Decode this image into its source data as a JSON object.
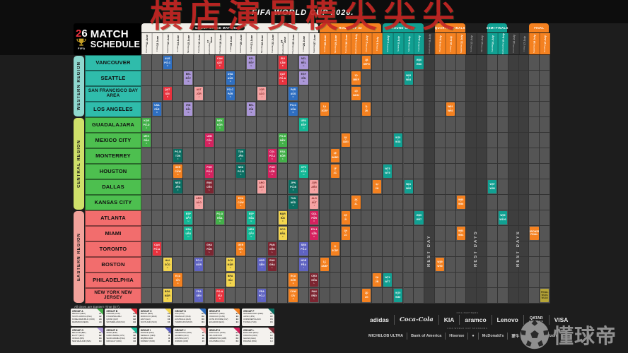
{
  "watermark": "横店演员模尖尖尖",
  "header": {
    "title": "FIFA WORLD CUP 2026."
  },
  "logo": {
    "year_digit1": "2",
    "year_digit2": "6",
    "fifa": "FIFA",
    "line1": "MATCH",
    "line2": "SCHEDULE"
  },
  "footnote": "All times are Eastern Time (ET).",
  "brand": {
    "name": "懂球帝"
  },
  "stages": [
    {
      "label": "GROUP STAGE MATCHES",
      "type": "group",
      "c0": 0,
      "c1": 16
    },
    {
      "label": "ROUND OF 32",
      "type": "orange",
      "c0": 17,
      "c1": 22
    },
    {
      "label": "ROUND OF 16",
      "type": "teal",
      "c0": 23,
      "c1": 26
    },
    {
      "label": "QUARTER-FINALS",
      "type": "orange",
      "c0": 28,
      "c1": 30
    },
    {
      "label": "SEMI-FINALS",
      "type": "teal",
      "c0": 33,
      "c1": 34
    },
    {
      "label": "FINAL",
      "type": "orange",
      "c0": 37,
      "c1": 38
    }
  ],
  "columns": [
    {
      "day": "Thursday",
      "date": "11 June",
      "type": "group"
    },
    {
      "day": "Friday",
      "date": "12 June",
      "type": "group"
    },
    {
      "day": "Saturday",
      "date": "13 June",
      "type": "group"
    },
    {
      "day": "Sunday",
      "date": "14 June",
      "type": "group"
    },
    {
      "day": "Monday",
      "date": "15 June",
      "type": "group"
    },
    {
      "day": "Tuesday",
      "date": "16 June",
      "type": "group"
    },
    {
      "day": "Wednesday",
      "date": "17 June",
      "type": "group"
    },
    {
      "day": "Thursday",
      "date": "18 June",
      "type": "group"
    },
    {
      "day": "Friday",
      "date": "19 June",
      "type": "group"
    },
    {
      "day": "Saturday",
      "date": "20 June",
      "type": "group"
    },
    {
      "day": "Sunday",
      "date": "21 June",
      "type": "group"
    },
    {
      "day": "Monday",
      "date": "22 June",
      "type": "group"
    },
    {
      "day": "Tuesday",
      "date": "23 June",
      "type": "group"
    },
    {
      "day": "Wednesday",
      "date": "24 June",
      "type": "group"
    },
    {
      "day": "Thursday",
      "date": "25 June",
      "type": "group"
    },
    {
      "day": "Friday",
      "date": "26 June",
      "type": "group"
    },
    {
      "day": "Saturday",
      "date": "27 June",
      "type": "group"
    },
    {
      "day": "Sunday",
      "date": "28 June",
      "type": "r32"
    },
    {
      "day": "Monday",
      "date": "29 June",
      "type": "r32"
    },
    {
      "day": "Tuesday",
      "date": "30 June",
      "type": "r32"
    },
    {
      "day": "Wednesday",
      "date": "1 July",
      "type": "r32"
    },
    {
      "day": "Thursday",
      "date": "2 July",
      "type": "r32"
    },
    {
      "day": "Friday",
      "date": "3 July",
      "type": "r32"
    },
    {
      "day": "Saturday",
      "date": "4 July",
      "type": "r16"
    },
    {
      "day": "Sunday",
      "date": "5 July",
      "type": "r16"
    },
    {
      "day": "Monday",
      "date": "6 July",
      "type": "r16"
    },
    {
      "day": "Tuesday",
      "date": "7 July",
      "type": "r16"
    },
    {
      "day": "Wednesday",
      "date": "8 July",
      "type": "rest"
    },
    {
      "day": "Thursday",
      "date": "9 July",
      "type": "qf"
    },
    {
      "day": "Friday",
      "date": "10 July",
      "type": "qf"
    },
    {
      "day": "Saturday",
      "date": "11 July",
      "type": "qf"
    },
    {
      "day": "Sunday",
      "date": "12 July",
      "type": "rest"
    },
    {
      "day": "Monday",
      "date": "13 July",
      "type": "rest"
    },
    {
      "day": "Tuesday",
      "date": "14 July",
      "type": "sf"
    },
    {
      "day": "Wednesday",
      "date": "15 July",
      "type": "sf"
    },
    {
      "day": "Thursday",
      "date": "16 July",
      "type": "rest"
    },
    {
      "day": "Friday",
      "date": "17 July",
      "type": "rest"
    },
    {
      "day": "Saturday",
      "date": "18 July",
      "type": "final"
    },
    {
      "day": "Sunday",
      "date": "19 July",
      "type": "final"
    }
  ],
  "rest_labels": [
    {
      "col": 27,
      "span": 1,
      "text": "REST DAY"
    },
    {
      "col": 31,
      "span": 2,
      "text": "REST DAYS"
    },
    {
      "col": 35,
      "span": 2,
      "text": "REST DAYS"
    }
  ],
  "regions": [
    {
      "name": "WESTERN REGION",
      "tab_color": "#8fd8cf",
      "city_color": "#2fbcab",
      "cities": [
        "VANCOUVER",
        "SEATTLE",
        "SAN FRANCISCO BAY AREA",
        "LOS ANGELES"
      ]
    },
    {
      "name": "CENTRAL REGION",
      "tab_color": "#cfe06a",
      "city_color": "#4dbf4f",
      "cities": [
        "GUADALAJARA",
        "MEXICO CITY",
        "MONTERREY",
        "HOUSTON",
        "DALLAS",
        "KANSAS CITY"
      ]
    },
    {
      "name": "EASTERN REGION",
      "tab_color": "#f2a29b",
      "city_color": "#f26d6d",
      "cities": [
        "ATLANTA",
        "MIAMI",
        "TORONTO",
        "BOSTON",
        "PHILADELPHIA",
        "NEW YORK NEW JERSEY"
      ]
    }
  ],
  "colors": {
    "A": {
      "bg": "#43b049",
      "fg": "#ffffff"
    },
    "B": {
      "bg": "#e8323e",
      "fg": "#ffffff"
    },
    "C": {
      "bg": "#f3d54e",
      "fg": "#222222"
    },
    "D": {
      "bg": "#2f6fc1",
      "fg": "#ffffff"
    },
    "E": {
      "bg": "#f48120",
      "fg": "#ffffff"
    },
    "F": {
      "bg": "#0b6e62",
      "fg": "#ffffff"
    },
    "G": {
      "bg": "#ab97d8",
      "fg": "#231f20"
    },
    "H": {
      "bg": "#14b896",
      "fg": "#ffffff"
    },
    "I": {
      "bg": "#5f63c2",
      "fg": "#ffffff"
    },
    "J": {
      "bg": "#f5a3a3",
      "fg": "#7a1e1e"
    },
    "K": {
      "bg": "#d5225f",
      "fg": "#ffffff"
    },
    "L": {
      "bg": "#7c2531",
      "fg": "#ffffff"
    },
    "r32": {
      "bg": "#f48120",
      "fg": "#ffffff"
    },
    "r16": {
      "bg": "#11a092",
      "fg": "#ffffff"
    },
    "qf": {
      "bg": "#f48120",
      "fg": "#ffffff"
    },
    "sf": {
      "bg": "#11a092",
      "fg": "#ffffff"
    },
    "bronze": {
      "bg": "#f48120",
      "fg": "#ffffff"
    },
    "final": {
      "bg": "#b5a437",
      "fg": "#332d10"
    }
  },
  "matches": [
    [
      5,
      0,
      "A",
      "MEX",
      "RSA"
    ],
    [
      4,
      0,
      "A",
      "KOR",
      "PO-D"
    ],
    [
      12,
      1,
      "B",
      "CAN",
      "PO-A"
    ],
    [
      3,
      1,
      "D",
      "USA",
      "PAR"
    ],
    [
      0,
      2,
      "D",
      "AUS",
      "PO-C"
    ],
    [
      2,
      2,
      "B",
      "QAT",
      "SUI"
    ],
    [
      13,
      2,
      "C",
      "HAI",
      "SCO"
    ],
    [
      15,
      2,
      "C",
      "BRA",
      "MAR"
    ],
    [
      7,
      3,
      "E",
      "GER",
      "CUW"
    ],
    [
      14,
      3,
      "E",
      "ECU",
      "CIV"
    ],
    [
      8,
      3,
      "F",
      "NED",
      "JPN"
    ],
    [
      6,
      3,
      "F",
      "PO-B",
      "TUN"
    ],
    [
      1,
      4,
      "G",
      "BEL",
      "EGY"
    ],
    [
      3,
      4,
      "G",
      "IRN",
      "NZL"
    ],
    [
      10,
      4,
      "H",
      "ESP",
      "CPV"
    ],
    [
      11,
      4,
      "H",
      "KSA",
      "URU"
    ],
    [
      9,
      5,
      "J",
      "ARG",
      "ALG"
    ],
    [
      2,
      5,
      "J",
      "AUT",
      "JOR"
    ],
    [
      15,
      5,
      "I",
      "FRA",
      "SEN"
    ],
    [
      13,
      5,
      "I",
      "PO-2",
      "NOR"
    ],
    [
      7,
      6,
      "K",
      "POR",
      "PO-1"
    ],
    [
      5,
      6,
      "K",
      "UZB",
      "COL"
    ],
    [
      8,
      6,
      "L",
      "ENG",
      "CRO"
    ],
    [
      12,
      6,
      "L",
      "GHA",
      "PAN"
    ],
    [
      4,
      7,
      "A",
      "MEX",
      "KOR"
    ],
    [
      10,
      7,
      "A",
      "PO-D",
      "RSA"
    ],
    [
      0,
      7,
      "B",
      "CAN",
      "QAT"
    ],
    [
      15,
      7,
      "B",
      "PO-A",
      "SUI"
    ],
    [
      1,
      8,
      "D",
      "USA",
      "AUS"
    ],
    [
      2,
      8,
      "D",
      "PO-C",
      "PAR"
    ],
    [
      14,
      8,
      "C",
      "BRA",
      "HAI"
    ],
    [
      13,
      8,
      "C",
      "SCO",
      "MAR"
    ],
    [
      12,
      9,
      "E",
      "GER",
      "CIV"
    ],
    [
      9,
      9,
      "E",
      "ECU",
      "CUW"
    ],
    [
      7,
      9,
      "F",
      "NED",
      "PO-B"
    ],
    [
      6,
      9,
      "F",
      "TUN",
      "JPN"
    ],
    [
      0,
      10,
      "G",
      "NZL",
      "EGY"
    ],
    [
      3,
      10,
      "G",
      "BEL",
      "IRN"
    ],
    [
      10,
      10,
      "H",
      "ESP",
      "KSA"
    ],
    [
      11,
      10,
      "H",
      "URU",
      "CPV"
    ],
    [
      8,
      11,
      "J",
      "ARG",
      "AUT"
    ],
    [
      2,
      11,
      "J",
      "JOR",
      "ALG"
    ],
    [
      15,
      11,
      "I",
      "FRA",
      "PO-2"
    ],
    [
      13,
      11,
      "I",
      "NOR",
      "SEN"
    ],
    [
      7,
      12,
      "K",
      "POR",
      "UZB"
    ],
    [
      6,
      12,
      "K",
      "COL",
      "PO-1"
    ],
    [
      13,
      12,
      "L",
      "ENG",
      "GHA"
    ],
    [
      12,
      12,
      "L",
      "PAN",
      "CRO"
    ],
    [
      5,
      13,
      "A",
      "PO-D",
      "MEX"
    ],
    [
      6,
      13,
      "A",
      "RSA",
      "KOR"
    ],
    [
      0,
      13,
      "B",
      "SUI",
      "CAN"
    ],
    [
      1,
      13,
      "B",
      "QAT",
      "PO-A"
    ],
    [
      10,
      13,
      "C",
      "MAR",
      "HAI"
    ],
    [
      11,
      13,
      "C",
      "SCO",
      "BRA"
    ],
    [
      3,
      14,
      "D",
      "PO-C",
      "USA"
    ],
    [
      2,
      14,
      "D",
      "PAR",
      "AUS"
    ],
    [
      14,
      14,
      "E",
      "ECU",
      "GER"
    ],
    [
      15,
      14,
      "E",
      "CUW",
      "CIV"
    ],
    [
      9,
      14,
      "F",
      "TUN",
      "NED"
    ],
    [
      8,
      14,
      "F",
      "JPN",
      "PO-B"
    ],
    [
      1,
      15,
      "G",
      "EGY",
      "IRN"
    ],
    [
      0,
      15,
      "G",
      "NZL",
      "BEL"
    ],
    [
      4,
      15,
      "H",
      "URU",
      "ESP"
    ],
    [
      7,
      15,
      "H",
      "CPV",
      "KSA"
    ],
    [
      13,
      15,
      "I",
      "NOR",
      "FRA"
    ],
    [
      12,
      15,
      "I",
      "SEN",
      "PO-2"
    ],
    [
      8,
      16,
      "J",
      "JOR",
      "ARG"
    ],
    [
      9,
      16,
      "J",
      "ALG",
      "AUT"
    ],
    [
      10,
      16,
      "K",
      "COL",
      "POR"
    ],
    [
      11,
      16,
      "K",
      "PO-1",
      "UZB"
    ],
    [
      15,
      16,
      "L",
      "PAN",
      "ENG"
    ],
    [
      14,
      16,
      "L",
      "CRO",
      "GHA"
    ],
    [
      3,
      17,
      "r32",
      "1A",
      "3CEF"
    ],
    [
      13,
      17,
      "r32",
      "1C",
      "3ABF"
    ],
    [
      6,
      18,
      "r32",
      "1E",
      "3ABC"
    ],
    [
      7,
      18,
      "r32",
      "1F",
      "2C"
    ],
    [
      12,
      18,
      "r32",
      "1I",
      "3CDF"
    ],
    [
      5,
      19,
      "r32",
      "1K",
      "3DEI"
    ],
    [
      10,
      19,
      "r32",
      "2E",
      "2I"
    ],
    [
      11,
      19,
      "r32",
      "1H",
      "2J"
    ],
    [
      1,
      20,
      "r32",
      "1D",
      "3BEF"
    ],
    [
      2,
      20,
      "r32",
      "1G",
      "3AHJ"
    ],
    [
      9,
      20,
      "r32",
      "2K",
      "2L"
    ],
    [
      0,
      21,
      "r32",
      "1B",
      "3EFG"
    ],
    [
      3,
      21,
      "r32",
      "1L",
      "2K"
    ],
    [
      15,
      21,
      "r32",
      "2D",
      "2G"
    ],
    [
      8,
      22,
      "r32",
      "1J",
      "2H"
    ],
    [
      14,
      22,
      "r32",
      "2A",
      "2B"
    ],
    [
      14,
      23,
      "r16",
      "W74",
      "W77"
    ],
    [
      7,
      23,
      "r16",
      "W73",
      "W75"
    ],
    [
      5,
      24,
      "r16",
      "W76",
      "W78"
    ],
    [
      15,
      24,
      "r16",
      "W79",
      "W80"
    ],
    [
      1,
      25,
      "r16",
      "W83",
      "W84"
    ],
    [
      8,
      25,
      "r16",
      "W81",
      "W82"
    ],
    [
      0,
      26,
      "r16",
      "W86",
      "W88"
    ],
    [
      10,
      26,
      "r16",
      "W85",
      "W87"
    ],
    [
      13,
      28,
      "qf",
      "W89",
      "W90"
    ],
    [
      3,
      29,
      "qf",
      "W91",
      "W92"
    ],
    [
      11,
      30,
      "qf",
      "W93",
      "W94"
    ],
    [
      9,
      30,
      "qf",
      "W95",
      "W96"
    ],
    [
      8,
      33,
      "sf",
      "W97",
      "W98"
    ],
    [
      10,
      34,
      "sf",
      "W99",
      "W100"
    ],
    [
      11,
      37,
      "bronze",
      "BRONZE",
      "FINAL"
    ],
    [
      15,
      38,
      "final",
      "FINAL",
      "W101 W102"
    ]
  ],
  "legend": [
    {
      "group": "GROUP A",
      "key": "A",
      "teams": [
        [
          "MEXICO (MEX)",
          "A1"
        ],
        [
          "SOUTH AFRICA (RSA)",
          "A2"
        ],
        [
          "KOREA REPUBLIC (KOR)",
          "A3"
        ],
        [
          "DEN/MKD/CZE/IRL",
          "A4"
        ]
      ]
    },
    {
      "group": "GROUP B",
      "key": "B",
      "teams": [
        [
          "CANADA (CAN)",
          "B1"
        ],
        [
          "ITA/NIR/WAL/BIH",
          "B2"
        ],
        [
          "QATAR (QAT)",
          "B3"
        ],
        [
          "SWITZERLAND (SUI)",
          "B4"
        ]
      ]
    },
    {
      "group": "GROUP C",
      "key": "C",
      "teams": [
        [
          "BRAZIL (BRA)",
          "C1"
        ],
        [
          "MOROCCO (MAR)",
          "C2"
        ],
        [
          "HAITI (HAI)",
          "C3"
        ],
        [
          "SCOTLAND (SCO)",
          "C4"
        ]
      ]
    },
    {
      "group": "GROUP D",
      "key": "D",
      "teams": [
        [
          "USA (USA)",
          "D1"
        ],
        [
          "PARAGUAY (PAR)",
          "D2"
        ],
        [
          "AUSTRALIA (AUS)",
          "D3"
        ],
        [
          "TUR/ROU/SVK/KOS",
          "D4"
        ]
      ]
    },
    {
      "group": "GROUP E",
      "key": "E",
      "teams": [
        [
          "GERMANY (GER)",
          "E1"
        ],
        [
          "CURACAO (CUW)",
          "E2"
        ],
        [
          "COTE D'IVOIRE (CIV)",
          "E3"
        ],
        [
          "ECUADOR (ECU)",
          "E4"
        ]
      ]
    },
    {
      "group": "GROUP F",
      "key": "F",
      "teams": [
        [
          "NETHERLANDS (NED)",
          "F1"
        ],
        [
          "JAPAN (JPN)",
          "F2"
        ],
        [
          "UKR/SWE/POL/ALB",
          "F3"
        ],
        [
          "TUNISIA (TUN)",
          "F4"
        ]
      ]
    },
    {
      "group": "GROUP G",
      "key": "G",
      "teams": [
        [
          "BELGIUM (BEL)",
          "G1"
        ],
        [
          "EGYPT (EGY)",
          "G2"
        ],
        [
          "IR IRAN (IRN)",
          "G3"
        ],
        [
          "NEW ZEALAND (NZL)",
          "G4"
        ]
      ]
    },
    {
      "group": "GROUP H",
      "key": "H",
      "teams": [
        [
          "SPAIN (ESP)",
          "H1"
        ],
        [
          "CABO VERDE (CPV)",
          "H2"
        ],
        [
          "SAUDI ARABIA (KSA)",
          "H3"
        ],
        [
          "URUGUAY (URU)",
          "H4"
        ]
      ]
    },
    {
      "group": "GROUP I",
      "key": "I",
      "teams": [
        [
          "FRANCE (FRA)",
          "I1"
        ],
        [
          "SENEGAL (SEN)",
          "I2"
        ],
        [
          "IRQ/BOL/SUR",
          "I3"
        ],
        [
          "NORWAY (NOR)",
          "I4"
        ]
      ]
    },
    {
      "group": "GROUP J",
      "key": "J",
      "teams": [
        [
          "ARGENTINA (ARG)",
          "J1"
        ],
        [
          "ALGERIA (ALG)",
          "J2"
        ],
        [
          "AUSTRIA (AUT)",
          "J3"
        ],
        [
          "JORDAN (JOR)",
          "J4"
        ]
      ]
    },
    {
      "group": "GROUP K",
      "key": "K",
      "teams": [
        [
          "PORTUGAL (POR)",
          "K1"
        ],
        [
          "NCL/JAM/COD",
          "K2"
        ],
        [
          "UZBEKISTAN (UZB)",
          "K3"
        ],
        [
          "COLOMBIA (COL)",
          "K4"
        ]
      ]
    },
    {
      "group": "GROUP L",
      "key": "L",
      "teams": [
        [
          "ENGLAND (ENG)",
          "L1"
        ],
        [
          "CROATIA (CRO)",
          "L2"
        ],
        [
          "GHANA (GHA)",
          "L3"
        ],
        [
          "PANAMA (PAN)",
          "L4"
        ]
      ]
    }
  ],
  "sponsors": {
    "partners_label": "FIFA PARTNERS",
    "partners": [
      "adidas",
      "Coca-Cola",
      "KIA",
      "aramco",
      "Lenovo",
      "QATAR|AIRWAYS",
      "VISA"
    ],
    "sponsors_label": "FIFA WORLD CUP SPONSORS",
    "second_row": [
      "MICHELOB ULTRA",
      "Bank of America",
      "Hisense",
      "●",
      "McDonald's",
      "蒙牛",
      "Dow",
      "verizon"
    ]
  }
}
